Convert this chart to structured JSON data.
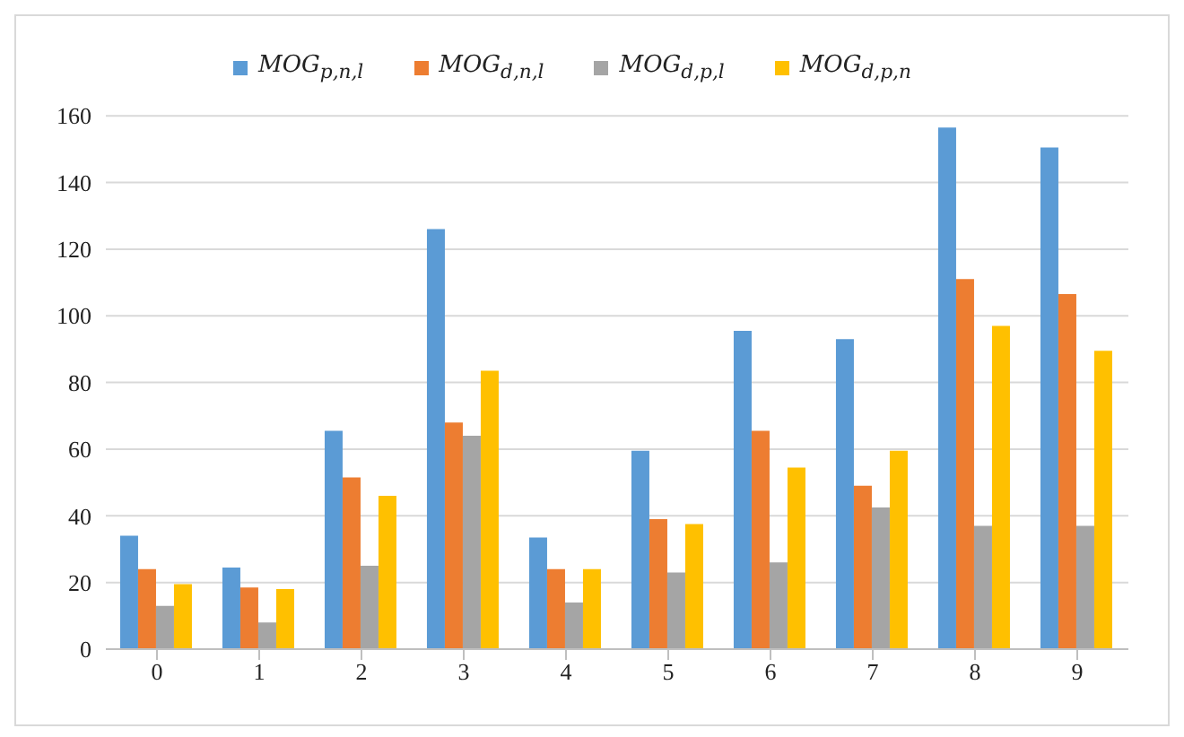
{
  "chart_data": {
    "type": "bar",
    "categories": [
      "0",
      "1",
      "2",
      "3",
      "4",
      "5",
      "6",
      "7",
      "8",
      "9"
    ],
    "series": [
      {
        "name": "MOG$_{p,n,l}$",
        "color": "#5b9bd5",
        "values": [
          34,
          24.5,
          65.5,
          126,
          33.5,
          59.5,
          95.5,
          93,
          156.5,
          150.5
        ]
      },
      {
        "name": "MOG$_{d,n,l}$",
        "color": "#ed7d31",
        "values": [
          24,
          18.5,
          51.5,
          68,
          24,
          39,
          65.5,
          49,
          111,
          106.5
        ]
      },
      {
        "name": "MOG$_{d,p,l}$",
        "color": "#a5a5a5",
        "values": [
          13,
          8,
          25,
          64,
          14,
          23,
          26,
          42.5,
          37,
          37
        ]
      },
      {
        "name": "MOG$_{d,p,n}$",
        "color": "#ffc000",
        "values": [
          19.5,
          18,
          46,
          83.5,
          24,
          37.5,
          54.5,
          59.5,
          97,
          89.5
        ]
      }
    ],
    "ylim": [
      0,
      160
    ],
    "yticks": [
      0,
      20,
      40,
      60,
      80,
      100,
      120,
      140,
      160
    ],
    "grid": "y",
    "legend": "top"
  }
}
